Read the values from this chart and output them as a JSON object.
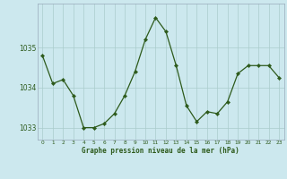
{
  "x": [
    0,
    1,
    2,
    3,
    4,
    5,
    6,
    7,
    8,
    9,
    10,
    11,
    12,
    13,
    14,
    15,
    16,
    17,
    18,
    19,
    20,
    21,
    22,
    23
  ],
  "y": [
    1034.8,
    1034.1,
    1034.2,
    1033.8,
    1033.0,
    1033.0,
    1033.1,
    1033.35,
    1033.8,
    1034.4,
    1035.2,
    1035.75,
    1035.4,
    1034.55,
    1033.55,
    1033.15,
    1033.4,
    1033.35,
    1033.65,
    1034.35,
    1034.55,
    1034.55,
    1034.55,
    1034.25
  ],
  "ylim": [
    1032.7,
    1036.1
  ],
  "yticks": [
    1033,
    1034,
    1035
  ],
  "xticks": [
    0,
    1,
    2,
    3,
    4,
    5,
    6,
    7,
    8,
    9,
    10,
    11,
    12,
    13,
    14,
    15,
    16,
    17,
    18,
    19,
    20,
    21,
    22,
    23
  ],
  "xtick_labels": [
    "0",
    "1",
    "2",
    "3",
    "4",
    "5",
    "6",
    "7",
    "8",
    "9",
    "10",
    "11",
    "12",
    "13",
    "14",
    "15",
    "16",
    "17",
    "18",
    "19",
    "20",
    "21",
    "22",
    "23"
  ],
  "line_color": "#2d5a1b",
  "marker_color": "#2d5a1b",
  "bg_color": "#cce8ee",
  "grid_color": "#aacccc",
  "xlabel": "Graphe pression niveau de la mer (hPa)",
  "text_color": "#2d5a1b",
  "spine_color": "#99aabb"
}
